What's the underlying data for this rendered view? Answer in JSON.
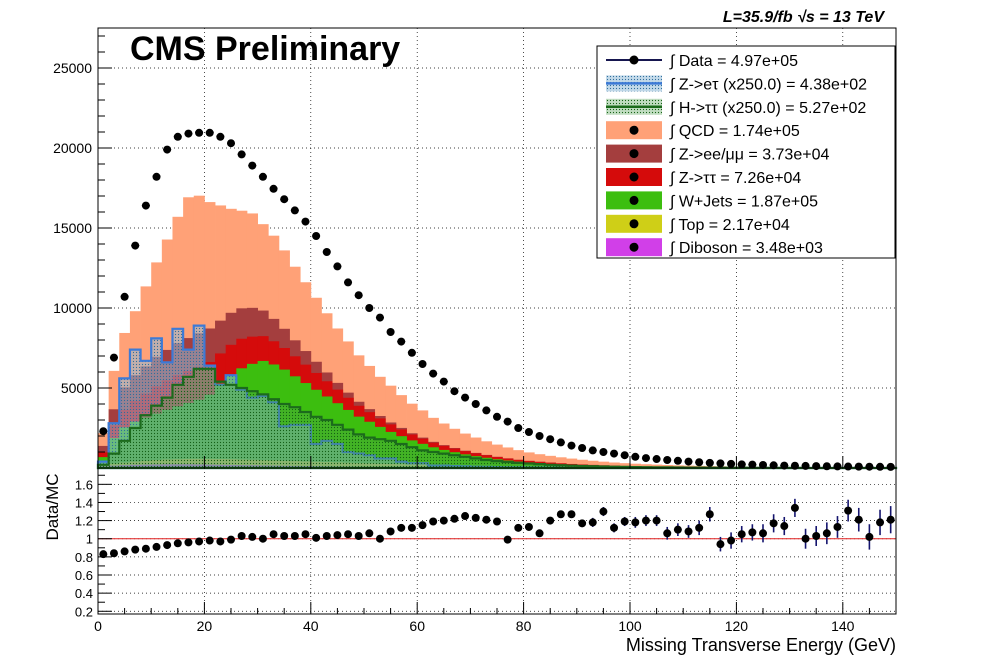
{
  "header": {
    "experiment": "CMS Preliminary",
    "lumi": "L=35.9/fb  √s = 13 TeV"
  },
  "chart_data": [
    {
      "type": "area",
      "panel": "main",
      "xlabel": "Missing Transverse Energy (GeV)",
      "ylabel": "",
      "xlim": [
        0,
        150
      ],
      "ylim": [
        0,
        27500
      ],
      "yticks": [
        5000,
        10000,
        15000,
        20000,
        25000
      ],
      "grid": true,
      "legend_position": "top-right",
      "bin_width": 2,
      "x": [
        1,
        3,
        5,
        7,
        9,
        11,
        13,
        15,
        17,
        19,
        21,
        23,
        25,
        27,
        29,
        31,
        33,
        35,
        37,
        39,
        41,
        43,
        45,
        47,
        49,
        51,
        53,
        55,
        57,
        59,
        61,
        63,
        65,
        67,
        69,
        71,
        73,
        75,
        77,
        79,
        81,
        83,
        85,
        87,
        89,
        91,
        93,
        95,
        97,
        99,
        101,
        103,
        105,
        107,
        109,
        111,
        113,
        115,
        117,
        119,
        121,
        123,
        125,
        127,
        129,
        131,
        133,
        135,
        137,
        139,
        141,
        143,
        145,
        147,
        149
      ],
      "stack": [
        {
          "name": "Diboson",
          "color": "#d13fe8",
          "integral": "3.48e+03",
          "values": [
            100,
            150,
            180,
            200,
            210,
            220,
            230,
            230,
            230,
            220,
            210,
            200,
            190,
            180,
            170,
            160,
            150,
            140,
            130,
            120,
            110,
            100,
            90,
            80,
            70,
            60,
            50,
            45,
            40,
            35,
            30,
            25,
            20,
            18,
            15,
            12,
            10,
            8,
            7,
            6,
            5,
            4,
            3,
            3,
            2,
            2,
            2,
            1,
            1,
            1,
            1,
            1,
            1,
            1,
            1,
            0,
            0,
            0,
            0,
            0,
            0,
            0,
            0,
            0,
            0,
            0,
            0,
            0,
            0,
            0,
            0,
            0,
            0,
            0,
            0
          ]
        },
        {
          "name": "Top",
          "color": "#cfcf17",
          "integral": "2.17e+04",
          "values": [
            80,
            120,
            160,
            200,
            240,
            280,
            300,
            320,
            340,
            350,
            360,
            360,
            360,
            350,
            340,
            330,
            320,
            310,
            300,
            290,
            280,
            270,
            260,
            250,
            240,
            230,
            220,
            210,
            200,
            190,
            180,
            170,
            160,
            150,
            140,
            130,
            120,
            110,
            100,
            90,
            85,
            80,
            75,
            70,
            65,
            60,
            55,
            50,
            45,
            40,
            38,
            36,
            34,
            32,
            30,
            28,
            26,
            24,
            22,
            20,
            18,
            16,
            14,
            12,
            10,
            10,
            10,
            10,
            10,
            10,
            10,
            10,
            10,
            10,
            10
          ]
        },
        {
          "name": "W+Jets",
          "color": "#3cbe0f",
          "integral": "1.87e+05",
          "values": [
            500,
            1600,
            2200,
            2500,
            2700,
            2900,
            3100,
            3300,
            3500,
            3700,
            4000,
            4600,
            5200,
            5700,
            6000,
            6200,
            6000,
            5700,
            5300,
            4900,
            4500,
            4100,
            3700,
            3300,
            2900,
            2600,
            2300,
            2000,
            1750,
            1500,
            1300,
            1100,
            950,
            820,
            700,
            600,
            510,
            430,
            360,
            300,
            250,
            210,
            175,
            145,
            120,
            100,
            85,
            70,
            58,
            48,
            40,
            34,
            28,
            24,
            20,
            17,
            14,
            12,
            10,
            8,
            7,
            6,
            5,
            4,
            4,
            3,
            3,
            3,
            2,
            2,
            2,
            2,
            2,
            2,
            2
          ]
        },
        {
          "name": "Z->ττ",
          "color": "#d50b0b",
          "integral": "7.26e+04",
          "values": [
            300,
            800,
            1100,
            1300,
            1500,
            1700,
            1850,
            1950,
            2000,
            2050,
            2050,
            2000,
            1950,
            1850,
            1700,
            1550,
            1450,
            1350,
            1250,
            1150,
            1050,
            950,
            850,
            760,
            680,
            600,
            530,
            470,
            420,
            370,
            330,
            290,
            260,
            230,
            200,
            180,
            160,
            140,
            125,
            110,
            100,
            90,
            80,
            70,
            62,
            55,
            48,
            42,
            36,
            31,
            27,
            24,
            21,
            18,
            16,
            14,
            12,
            10,
            9,
            8,
            7,
            6,
            5,
            4,
            4,
            3,
            3,
            3,
            2,
            2,
            2,
            2,
            2,
            2,
            2
          ]
        },
        {
          "name": "Z->ee/μμ",
          "color": "#a43e3e",
          "integral": "3.73e+04",
          "values": [
            400,
            1000,
            1400,
            1600,
            1700,
            1850,
            1900,
            2000,
            2050,
            2100,
            2100,
            2050,
            2000,
            1900,
            1800,
            1600,
            1400,
            1200,
            1000,
            850,
            700,
            550,
            420,
            320,
            250,
            190,
            150,
            120,
            95,
            75,
            60,
            50,
            40,
            33,
            27,
            22,
            18,
            15,
            12,
            10,
            9,
            8,
            7,
            6,
            5,
            4,
            4,
            3,
            3,
            2,
            2,
            2,
            2,
            1,
            1,
            1,
            1,
            1,
            1,
            1,
            1,
            1,
            1,
            1,
            1,
            1,
            1,
            1,
            1,
            1,
            1,
            1,
            1,
            1,
            1
          ]
        },
        {
          "name": "QCD",
          "color": "#ffa177",
          "integral": "1.74e+05",
          "values": [
            800,
            2400,
            3400,
            4000,
            5000,
            5900,
            6900,
            7900,
            8800,
            8600,
            7900,
            7200,
            6500,
            6100,
            5900,
            5400,
            5200,
            4900,
            4600,
            4300,
            4000,
            3700,
            3400,
            3200,
            2900,
            2700,
            2450,
            2300,
            2050,
            1850,
            1700,
            1500,
            1350,
            1200,
            1070,
            960,
            850,
            760,
            680,
            600,
            525,
            470,
            420,
            375,
            335,
            295,
            260,
            230,
            200,
            180,
            160,
            140,
            126,
            112,
            100,
            90,
            80,
            72,
            64,
            57,
            51,
            46,
            41,
            36,
            32,
            29,
            26,
            23,
            20,
            18,
            16,
            14,
            13,
            12,
            11
          ]
        }
      ],
      "overlays": [
        {
          "name": "Z->eτ (x250.0)",
          "color": "#3d7ad6",
          "style": "filled-hatched-light-blue",
          "integral": "4.38e+02",
          "values": [
            400,
            2800,
            5600,
            7400,
            6700,
            8100,
            6600,
            8700,
            7400,
            8900,
            6400,
            5200,
            5800,
            4900,
            4400,
            4500,
            4100,
            2600,
            2700,
            2700,
            1500,
            1700,
            1500,
            1000,
            900,
            800,
            600,
            600,
            400,
            300,
            300,
            150,
            150,
            120,
            100,
            80,
            70,
            60,
            50,
            40,
            35,
            30,
            25,
            20,
            15,
            12,
            10,
            8,
            6,
            5,
            4,
            3,
            3,
            2,
            2,
            2,
            1,
            1,
            1,
            1,
            1,
            1,
            1,
            1,
            1,
            1,
            1,
            1,
            1,
            1,
            1,
            1,
            1,
            1,
            1
          ]
        },
        {
          "name": "H->ττ (x250.0)",
          "color": "#1c6b1c",
          "style": "filled-hatched-green",
          "integral": "5.27e+02",
          "values": [
            200,
            900,
            1700,
            2500,
            3300,
            3900,
            4400,
            5200,
            5700,
            6200,
            6200,
            5400,
            5200,
            5000,
            4800,
            4600,
            4300,
            4000,
            3800,
            3500,
            3200,
            3000,
            2700,
            2400,
            2100,
            1900,
            1800,
            1700,
            1500,
            1300,
            1100,
            1000,
            900,
            800,
            700,
            600,
            500,
            430,
            370,
            320,
            280,
            240,
            200,
            170,
            150,
            130,
            110,
            95,
            80,
            70,
            60,
            50,
            44,
            38,
            32,
            28,
            24,
            20,
            18,
            16,
            14,
            12,
            10,
            8,
            7,
            6,
            5,
            4,
            4,
            3,
            3,
            3,
            2,
            2,
            2
          ]
        }
      ],
      "data": {
        "name": "Data",
        "color": "#000000",
        "integral": "4.97e+05",
        "values": [
          2300,
          6900,
          10700,
          13900,
          16400,
          18200,
          19900,
          20700,
          20900,
          20950,
          20950,
          20700,
          20300,
          19600,
          18900,
          18200,
          17450,
          16800,
          16100,
          15400,
          14500,
          13500,
          12600,
          11600,
          10800,
          10000,
          9400,
          8500,
          7900,
          7200,
          6500,
          5900,
          5400,
          4800,
          4400,
          4000,
          3600,
          3200,
          2900,
          2500,
          2250,
          2000,
          1800,
          1600,
          1400,
          1250,
          1100,
          1000,
          900,
          800,
          700,
          620,
          560,
          500,
          450,
          400,
          360,
          320,
          290,
          260,
          230,
          210,
          190,
          170,
          150,
          140,
          130,
          120,
          110,
          100,
          90,
          85,
          80,
          75,
          70
        ]
      }
    },
    {
      "type": "scatter",
      "panel": "ratio",
      "xlabel": "Missing Transverse Energy (GeV)",
      "ylabel": "Data/MC",
      "xlim": [
        0,
        150
      ],
      "ylim": [
        0.17,
        1.78
      ],
      "yticks": [
        0.2,
        0.4,
        0.6,
        0.8,
        1,
        1.2,
        1.4,
        1.6
      ],
      "xticks": [
        0,
        20,
        40,
        60,
        80,
        100,
        120,
        140
      ],
      "reference_line": 1,
      "x": [
        1,
        3,
        5,
        7,
        9,
        11,
        13,
        15,
        17,
        19,
        21,
        23,
        25,
        27,
        29,
        31,
        33,
        35,
        37,
        39,
        41,
        43,
        45,
        47,
        49,
        51,
        53,
        55,
        57,
        59,
        61,
        63,
        65,
        67,
        69,
        71,
        73,
        75,
        77,
        79,
        81,
        83,
        85,
        87,
        89,
        91,
        93,
        95,
        97,
        99,
        101,
        103,
        105,
        107,
        109,
        111,
        113,
        115,
        117,
        119,
        121,
        123,
        125,
        127,
        129,
        131,
        133,
        135,
        137,
        139,
        141,
        143,
        145,
        147,
        149
      ],
      "values": [
        0.83,
        0.84,
        0.86,
        0.88,
        0.89,
        0.91,
        0.93,
        0.95,
        0.96,
        0.97,
        0.98,
        0.97,
        0.99,
        1.03,
        1.02,
        1.0,
        1.05,
        1.03,
        1.03,
        1.05,
        1.01,
        1.03,
        1.04,
        1.05,
        1.03,
        1.06,
        1.0,
        1.08,
        1.12,
        1.12,
        1.15,
        1.19,
        1.2,
        1.22,
        1.25,
        1.23,
        1.21,
        1.19,
        0.99,
        1.12,
        1.13,
        1.06,
        1.2,
        1.27,
        1.27,
        1.17,
        1.18,
        1.3,
        1.12,
        1.19,
        1.18,
        1.2,
        1.2,
        1.06,
        1.1,
        1.08,
        1.12,
        1.27,
        0.94,
        0.98,
        1.05,
        1.07,
        1.06,
        1.17,
        1.14,
        1.34,
        1.0,
        1.03,
        1.06,
        1.13,
        1.31,
        1.21,
        1.02,
        1.18,
        1.21
      ],
      "errors": [
        0.01,
        0.01,
        0.01,
        0.01,
        0.01,
        0.01,
        0.01,
        0.01,
        0.01,
        0.01,
        0.01,
        0.01,
        0.01,
        0.01,
        0.01,
        0.01,
        0.01,
        0.01,
        0.01,
        0.01,
        0.01,
        0.01,
        0.01,
        0.01,
        0.02,
        0.02,
        0.02,
        0.02,
        0.02,
        0.02,
        0.02,
        0.02,
        0.02,
        0.02,
        0.02,
        0.03,
        0.03,
        0.03,
        0.03,
        0.03,
        0.03,
        0.04,
        0.04,
        0.04,
        0.04,
        0.04,
        0.05,
        0.05,
        0.05,
        0.05,
        0.06,
        0.06,
        0.06,
        0.07,
        0.07,
        0.07,
        0.08,
        0.08,
        0.08,
        0.09,
        0.09,
        0.09,
        0.1,
        0.1,
        0.1,
        0.1,
        0.11,
        0.11,
        0.12,
        0.12,
        0.12,
        0.13,
        0.14,
        0.14,
        0.15
      ]
    }
  ]
}
